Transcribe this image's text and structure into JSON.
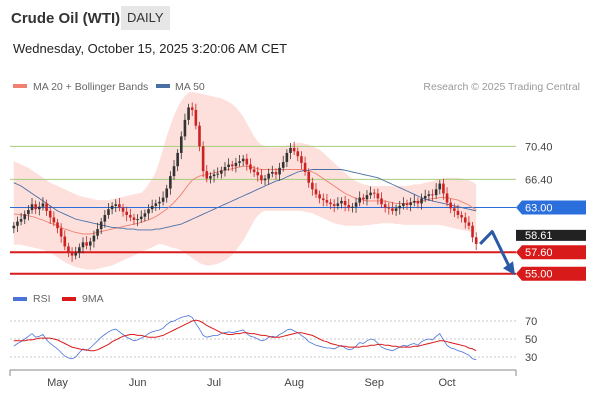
{
  "header": {
    "instrument": "Crude Oil (WTI)",
    "timeframe": "DAILY",
    "timestamp": "Wednesday, October 15, 2025 3:20:06 AM CET"
  },
  "legend": {
    "ma20": "MA 20 + Bollinger Bands",
    "ma50": "MA 50",
    "credit": "Research © 2025 Trading Central"
  },
  "rsi_legend": {
    "rsi": "RSI",
    "ma9": "9MA"
  },
  "colors": {
    "candle_up": "#333333",
    "candle_down": "#cc2222",
    "bollinger_fill": "#fde0dc",
    "ma20": "#f08070",
    "ma50": "#4a6fa5",
    "resistance": "#a6cc7a",
    "pivot": "#2a6fdb",
    "support": "#d91a1a",
    "current_price_tag": "#222222",
    "rsi": "#4a72d8",
    "rsi_ma9": "#d91a1a",
    "arrow": "#2a5aa5"
  },
  "chart_data": [
    {
      "type": "candlestick",
      "title": "Crude Oil (WTI)",
      "subtitle": "DAILY",
      "x_tick_labels": [
        "May",
        "Jun",
        "Jul",
        "Aug",
        "Sep",
        "Oct"
      ],
      "price_range": [
        54.0,
        76.0
      ],
      "grid": false,
      "legend_position": "top-left",
      "levels": [
        {
          "label": "70.40",
          "value": 70.4,
          "kind": "resistance"
        },
        {
          "label": "66.40",
          "value": 66.4,
          "kind": "resistance"
        },
        {
          "label": "63.00",
          "value": 63.0,
          "kind": "pivot"
        },
        {
          "label": "57.60",
          "value": 57.6,
          "kind": "support"
        },
        {
          "label": "55.00",
          "value": 55.0,
          "kind": "support"
        }
      ],
      "current_price": {
        "label": "58.61",
        "value": 58.61
      },
      "closes": [
        60.8,
        61.3,
        61.6,
        62.2,
        62.7,
        63.4,
        62.8,
        63.1,
        63.5,
        62.6,
        61.8,
        61.2,
        60.5,
        59.5,
        58.3,
        57.6,
        57.2,
        57.5,
        58.2,
        58.8,
        58.4,
        58.9,
        59.6,
        60.4,
        61.3,
        62.1,
        62.8,
        63.2,
        63.4,
        63.0,
        62.5,
        62.1,
        61.8,
        61.5,
        61.6,
        61.9,
        62.3,
        62.8,
        63.2,
        63.5,
        63.7,
        64.2,
        65.3,
        66.8,
        68.0,
        69.6,
        71.6,
        73.6,
        75.1,
        74.8,
        72.9,
        70.4,
        67.4,
        66.5,
        66.8,
        67.0,
        67.1,
        67.5,
        67.9,
        68.2,
        68.0,
        68.4,
        68.6,
        68.9,
        68.2,
        67.6,
        67.3,
        66.9,
        66.3,
        66.5,
        67.1,
        67.3,
        67.0,
        67.8,
        68.5,
        69.6,
        70.2,
        69.8,
        69.2,
        68.4,
        67.3,
        66.0,
        65.2,
        64.6,
        64.1,
        63.9,
        63.6,
        63.4,
        63.2,
        63.5,
        63.8,
        63.3,
        63.0,
        63.1,
        63.6,
        64.2,
        64.0,
        64.5,
        64.8,
        64.7,
        64.1,
        63.4,
        63.0,
        62.9,
        62.6,
        62.9,
        63.2,
        63.5,
        63.3,
        63.6,
        63.8,
        63.5,
        64.1,
        64.4,
        64.6,
        64.5,
        65.2,
        65.9,
        64.7,
        63.6,
        62.9,
        62.6,
        62.1,
        61.8,
        61.2,
        60.8,
        59.4,
        58.6
      ],
      "ma20": [
        62.2,
        62.2,
        62.1,
        62.1,
        62.0,
        61.9,
        61.8,
        61.6,
        61.5,
        61.3,
        61.1,
        61.0,
        60.8,
        60.6,
        60.4,
        60.3,
        60.1,
        60.0,
        59.9,
        59.8,
        59.8,
        59.8,
        59.9,
        60.0,
        60.1,
        60.2,
        60.3,
        60.4,
        60.5,
        60.6,
        60.7,
        60.8,
        60.9,
        61.0,
        61.1,
        61.2,
        61.4,
        61.5,
        61.7,
        61.9,
        62.2,
        62.5,
        62.8,
        63.2,
        63.6,
        64.1,
        64.6,
        65.2,
        65.8,
        66.3,
        66.6,
        66.8,
        66.9,
        67.0,
        67.1,
        67.2,
        67.3,
        67.4,
        67.5,
        67.6,
        67.7,
        67.8,
        67.9,
        68.0,
        68.0,
        67.9,
        67.8,
        67.7,
        67.6,
        67.6,
        67.6,
        67.6,
        67.6,
        67.6,
        67.6,
        67.6,
        67.6,
        67.6,
        67.6,
        67.6,
        67.5,
        67.4,
        67.3,
        67.1,
        66.8,
        66.5,
        66.2,
        65.9,
        65.6,
        65.3,
        65.0,
        64.7,
        64.5,
        64.3,
        64.1,
        64.0,
        63.9,
        63.8,
        63.8,
        63.8,
        63.8,
        63.8,
        63.8,
        63.7,
        63.6,
        63.5,
        63.5,
        63.5,
        63.5,
        63.6,
        63.7,
        63.7,
        63.8,
        63.9,
        64.0,
        64.1,
        64.1,
        64.2,
        64.2,
        64.2,
        64.1,
        64.0,
        63.9,
        63.7,
        63.5,
        63.3,
        63.0,
        62.7
      ],
      "bollinger_upper": [
        68.6,
        68.4,
        68.2,
        68.0,
        67.8,
        67.5,
        67.2,
        66.9,
        66.6,
        66.3,
        66.0,
        65.8,
        65.6,
        65.4,
        65.2,
        65.0,
        64.8,
        64.6,
        64.4,
        64.3,
        64.2,
        64.1,
        64.0,
        63.9,
        63.9,
        63.9,
        63.9,
        64.0,
        64.1,
        64.2,
        64.3,
        64.4,
        64.5,
        64.6,
        64.7,
        64.8,
        65.2,
        65.8,
        66.5,
        67.3,
        68.6,
        70.1,
        71.6,
        72.9,
        74.1,
        75.1,
        75.9,
        76.5,
        76.9,
        77.0,
        76.9,
        76.8,
        76.7,
        76.6,
        76.5,
        76.4,
        76.3,
        76.2,
        76.0,
        75.8,
        75.5,
        75.1,
        74.6,
        74.0,
        73.2,
        72.4,
        71.6,
        71.0,
        70.6,
        70.4,
        70.3,
        70.3,
        70.3,
        70.3,
        70.4,
        70.5,
        70.6,
        70.7,
        70.8,
        70.8,
        70.7,
        70.6,
        70.4,
        70.2,
        70.0,
        69.6,
        69.2,
        68.8,
        68.4,
        68.0,
        67.6,
        67.2,
        66.8,
        66.5,
        66.2,
        66.0,
        65.8,
        65.7,
        65.6,
        65.6,
        65.6,
        65.6,
        65.6,
        65.6,
        65.6,
        65.6,
        65.6,
        65.6,
        65.6,
        65.7,
        65.8,
        65.8,
        65.9,
        66.0,
        66.1,
        66.2,
        66.3,
        66.4,
        66.5,
        66.6,
        66.6,
        66.6,
        66.6,
        66.5,
        66.4,
        66.3,
        66.1,
        65.8
      ],
      "bollinger_lower": [
        58.5,
        58.5,
        58.5,
        58.4,
        58.3,
        58.2,
        58.1,
        58.0,
        57.9,
        57.7,
        57.5,
        57.3,
        57.0,
        56.7,
        56.4,
        56.2,
        56.0,
        55.8,
        55.7,
        55.6,
        55.5,
        55.5,
        55.5,
        55.6,
        55.7,
        55.8,
        55.9,
        56.0,
        56.2,
        56.4,
        56.6,
        56.8,
        57.0,
        57.2,
        57.4,
        57.6,
        57.8,
        58.0,
        58.2,
        58.4,
        58.6,
        58.5,
        58.4,
        58.2,
        58.1,
        58.0,
        57.8,
        57.5,
        57.2,
        56.9,
        56.6,
        56.3,
        56.1,
        56.0,
        56.0,
        56.1,
        56.2,
        56.4,
        56.6,
        56.9,
        57.3,
        57.8,
        58.4,
        59.0,
        59.8,
        60.6,
        61.4,
        62.0,
        62.4,
        62.6,
        62.6,
        62.6,
        62.6,
        62.6,
        62.6,
        62.6,
        62.6,
        62.6,
        62.6,
        62.6,
        62.5,
        62.4,
        62.3,
        62.1,
        61.9,
        61.7,
        61.5,
        61.3,
        61.1,
        61.0,
        60.9,
        60.8,
        60.8,
        60.8,
        60.8,
        60.8,
        60.8,
        60.9,
        60.9,
        61.0,
        61.0,
        61.1,
        61.1,
        61.1,
        61.1,
        61.0,
        61.0,
        60.9,
        60.9,
        60.9,
        60.9,
        60.9,
        60.9,
        60.9,
        60.9,
        60.9,
        60.9,
        60.9,
        60.8,
        60.7,
        60.6,
        60.5,
        60.4,
        60.3,
        60.2,
        60.1,
        60.0,
        59.8
      ],
      "ma50": [
        66.0,
        65.8,
        65.6,
        65.3,
        65.0,
        64.7,
        64.4,
        64.1,
        63.8,
        63.5,
        63.2,
        62.9,
        62.6,
        62.4,
        62.2,
        62.0,
        61.8,
        61.6,
        61.5,
        61.4,
        61.3,
        61.2,
        61.1,
        61.0,
        60.9,
        60.8,
        60.7,
        60.6,
        60.6,
        60.5,
        60.5,
        60.4,
        60.4,
        60.4,
        60.3,
        60.3,
        60.3,
        60.3,
        60.3,
        60.4,
        60.4,
        60.5,
        60.6,
        60.7,
        60.8,
        60.9,
        61.0,
        61.2,
        61.4,
        61.6,
        61.8,
        62.0,
        62.2,
        62.4,
        62.6,
        62.8,
        63.0,
        63.2,
        63.4,
        63.6,
        63.8,
        64.0,
        64.2,
        64.4,
        64.6,
        64.8,
        65.0,
        65.2,
        65.4,
        65.6,
        65.8,
        66.0,
        66.2,
        66.3,
        66.5,
        66.7,
        66.9,
        67.1,
        67.3,
        67.4,
        67.5,
        67.5,
        67.6,
        67.6,
        67.6,
        67.6,
        67.6,
        67.6,
        67.6,
        67.6,
        67.6,
        67.5,
        67.4,
        67.3,
        67.2,
        67.1,
        67.0,
        66.9,
        66.8,
        66.7,
        66.6,
        66.4,
        66.2,
        66.0,
        65.8,
        65.6,
        65.4,
        65.2,
        65.0,
        64.8,
        64.6,
        64.4,
        64.2,
        64.0,
        63.9,
        63.8,
        63.7,
        63.6,
        63.5,
        63.4,
        63.3,
        63.2,
        63.1,
        63.0,
        62.9,
        62.8,
        62.7,
        62.6
      ]
    },
    {
      "type": "line",
      "title": "RSI",
      "y_ticks": [
        70,
        50,
        30
      ],
      "ylim": [
        20,
        80
      ],
      "series": [
        {
          "name": "RSI",
          "values": [
            42,
            45,
            47,
            50,
            53,
            56,
            52,
            53,
            55,
            49,
            45,
            42,
            39,
            35,
            31,
            29,
            28,
            30,
            35,
            39,
            37,
            40,
            44,
            48,
            52,
            55,
            58,
            60,
            61,
            58,
            55,
            52,
            50,
            48,
            49,
            51,
            53,
            56,
            58,
            59,
            60,
            62,
            66,
            69,
            70,
            72,
            74,
            75,
            76,
            74,
            67,
            61,
            54,
            52,
            53,
            54,
            54,
            56,
            57,
            58,
            57,
            58,
            59,
            60,
            56,
            53,
            52,
            50,
            48,
            49,
            52,
            53,
            52,
            55,
            57,
            60,
            61,
            59,
            57,
            54,
            51,
            47,
            45,
            43,
            42,
            41,
            40,
            40,
            39,
            41,
            43,
            40,
            38,
            39,
            42,
            46,
            45,
            48,
            50,
            49,
            45,
            41,
            39,
            38,
            37,
            39,
            41,
            43,
            42,
            44,
            45,
            43,
            47,
            49,
            50,
            49,
            53,
            56,
            49,
            43,
            40,
            39,
            37,
            36,
            34,
            32,
            28,
            27
          ]
        },
        {
          "name": "9MA",
          "values": [
            48,
            48,
            48,
            48,
            49,
            49,
            50,
            51,
            51,
            51,
            51,
            50,
            49,
            47,
            45,
            43,
            41,
            40,
            39,
            38,
            38,
            37,
            37,
            38,
            40,
            42,
            44,
            47,
            49,
            51,
            53,
            54,
            55,
            55,
            54,
            54,
            53,
            52,
            52,
            52,
            53,
            54,
            56,
            58,
            60,
            62,
            64,
            66,
            68,
            70,
            71,
            70,
            68,
            65,
            63,
            61,
            59,
            57,
            56,
            55,
            55,
            56,
            56,
            57,
            57,
            56,
            56,
            55,
            54,
            54,
            53,
            52,
            52,
            52,
            53,
            54,
            55,
            56,
            57,
            57,
            56,
            55,
            54,
            52,
            50,
            48,
            47,
            45,
            44,
            43,
            42,
            42,
            41,
            41,
            41,
            41,
            42,
            42,
            43,
            43,
            44,
            44,
            43,
            43,
            42,
            42,
            41,
            41,
            41,
            41,
            42,
            42,
            43,
            44,
            45,
            46,
            47,
            48,
            48,
            47,
            46,
            45,
            44,
            43,
            42,
            40,
            39,
            37
          ]
        }
      ]
    }
  ]
}
